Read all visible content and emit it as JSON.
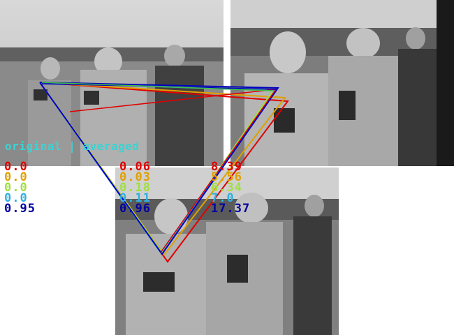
{
  "header": "original | averaged",
  "colors": {
    "red": "#e00000",
    "orange": "#e0a000",
    "green": "#a0e040",
    "cyan": "#30b0e0",
    "blue": "#0000a0",
    "header": "#3bd3d3"
  },
  "columns": [
    {
      "values": [
        "0.0",
        "0.0",
        "0.0",
        "0.0",
        "0.95"
      ]
    },
    {
      "values": [
        "0.06",
        "0.03",
        "0.18",
        "0.11",
        "0.96"
      ]
    },
    {
      "values": [
        "8.39",
        "5.56",
        "6.34",
        "7.0",
        "17.37"
      ]
    }
  ]
}
